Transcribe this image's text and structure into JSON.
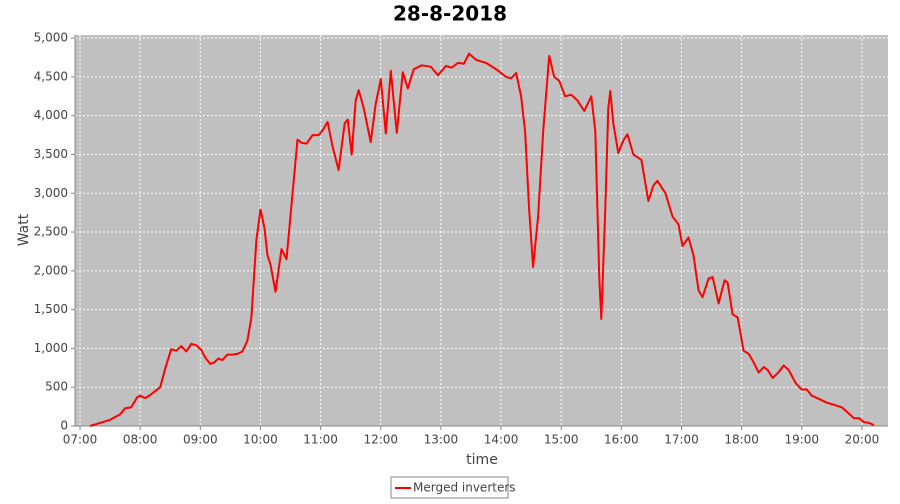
{
  "chart_data": {
    "type": "line",
    "title": "28-8-2018",
    "x_label": "time",
    "y_label": "Watt",
    "x": [
      "07:10",
      "07:20",
      "07:30",
      "07:40",
      "07:45",
      "07:51",
      "07:57",
      "08:00",
      "08:05",
      "08:10",
      "08:15",
      "08:20",
      "08:25",
      "08:31",
      "08:36",
      "08:41",
      "08:46",
      "08:51",
      "08:56",
      "09:01",
      "09:05",
      "09:10",
      "09:14",
      "09:18",
      "09:22",
      "09:27",
      "09:32",
      "09:37",
      "09:42",
      "09:47",
      "09:51",
      "09:56",
      "10:00",
      "10:04",
      "10:07",
      "10:10",
      "10:15",
      "10:21",
      "10:26",
      "10:31",
      "10:37",
      "10:41",
      "10:46",
      "10:52",
      "10:58",
      "11:02",
      "11:07",
      "11:12",
      "11:18",
      "11:24",
      "11:27",
      "11:31",
      "11:35",
      "11:38",
      "11:43",
      "11:50",
      "11:55",
      "12:00",
      "12:05",
      "12:10",
      "12:16",
      "12:22",
      "12:27",
      "12:33",
      "12:41",
      "12:50",
      "12:57",
      "13:05",
      "13:11",
      "13:17",
      "13:23",
      "13:28",
      "13:35",
      "13:45",
      "13:55",
      "14:05",
      "14:10",
      "14:15",
      "14:20",
      "14:24",
      "14:28",
      "14:32",
      "14:37",
      "14:42",
      "14:48",
      "14:53",
      "14:58",
      "15:04",
      "15:10",
      "15:16",
      "15:23",
      "15:30",
      "15:34",
      "15:38",
      "15:40",
      "15:44",
      "15:47",
      "15:49",
      "15:52",
      "15:57",
      "16:02",
      "16:06",
      "16:12",
      "16:20",
      "16:27",
      "16:32",
      "16:36",
      "16:44",
      "16:51",
      "16:57",
      "17:01",
      "17:07",
      "17:12",
      "17:17",
      "17:21",
      "17:27",
      "17:31",
      "17:37",
      "17:43",
      "17:46",
      "17:51",
      "17:56",
      "18:02",
      "18:07",
      "18:12",
      "18:17",
      "18:22",
      "18:26",
      "18:31",
      "18:36",
      "18:42",
      "18:47",
      "18:54",
      "19:00",
      "19:05",
      "19:10",
      "19:17",
      "19:25",
      "19:33",
      "19:40",
      "19:47",
      "19:52",
      "19:57",
      "20:02",
      "20:07",
      "20:12"
    ],
    "series": [
      {
        "name": "Merged inverters",
        "color": "#ff0000",
        "values": [
          0,
          40,
          80,
          150,
          230,
          240,
          370,
          390,
          360,
          400,
          450,
          500,
          740,
          990,
          970,
          1030,
          960,
          1060,
          1040,
          980,
          880,
          800,
          820,
          870,
          850,
          920,
          920,
          930,
          960,
          1100,
          1400,
          2400,
          2790,
          2550,
          2200,
          2080,
          1730,
          2280,
          2150,
          2850,
          3690,
          3650,
          3640,
          3750,
          3750,
          3810,
          3920,
          3600,
          3300,
          3900,
          3950,
          3500,
          4200,
          4330,
          4100,
          3660,
          4150,
          4470,
          3770,
          4580,
          3780,
          4560,
          4350,
          4600,
          4650,
          4630,
          4520,
          4640,
          4620,
          4680,
          4670,
          4800,
          4720,
          4680,
          4600,
          4500,
          4480,
          4550,
          4250,
          3800,
          2800,
          2050,
          2700,
          3800,
          4770,
          4500,
          4450,
          4250,
          4270,
          4200,
          4060,
          4250,
          3800,
          1900,
          1380,
          2800,
          4100,
          4320,
          3900,
          3520,
          3680,
          3760,
          3500,
          3430,
          2900,
          3100,
          3160,
          3000,
          2700,
          2600,
          2320,
          2430,
          2200,
          1750,
          1660,
          1900,
          1920,
          1580,
          1880,
          1850,
          1440,
          1400,
          970,
          930,
          820,
          690,
          760,
          720,
          620,
          680,
          780,
          720,
          550,
          470,
          470,
          390,
          350,
          300,
          270,
          240,
          160,
          100,
          100,
          50,
          40,
          10
        ]
      }
    ],
    "xlim": [
      "06:55",
      "20:26"
    ],
    "xticks": [
      "07:00",
      "08:00",
      "09:00",
      "10:00",
      "11:00",
      "12:00",
      "13:00",
      "14:00",
      "15:00",
      "16:00",
      "17:00",
      "18:00",
      "19:00",
      "20:00"
    ],
    "ylim": [
      0,
      5040
    ],
    "yticks": [
      0,
      500,
      {
        "value": 1000,
        "label": "1,000"
      },
      {
        "value": 1500,
        "label": "1,500"
      },
      {
        "value": 2000,
        "label": "2,000"
      },
      {
        "value": 2500,
        "label": "2,500"
      },
      {
        "value": 3000,
        "label": "3,000"
      },
      {
        "value": 3500,
        "label": "3,500"
      },
      {
        "value": 4000,
        "label": "4,000"
      },
      {
        "value": 4500,
        "label": "4,500"
      },
      {
        "value": 5000,
        "label": "5,000"
      }
    ],
    "grid": true,
    "legend": "bottom"
  }
}
